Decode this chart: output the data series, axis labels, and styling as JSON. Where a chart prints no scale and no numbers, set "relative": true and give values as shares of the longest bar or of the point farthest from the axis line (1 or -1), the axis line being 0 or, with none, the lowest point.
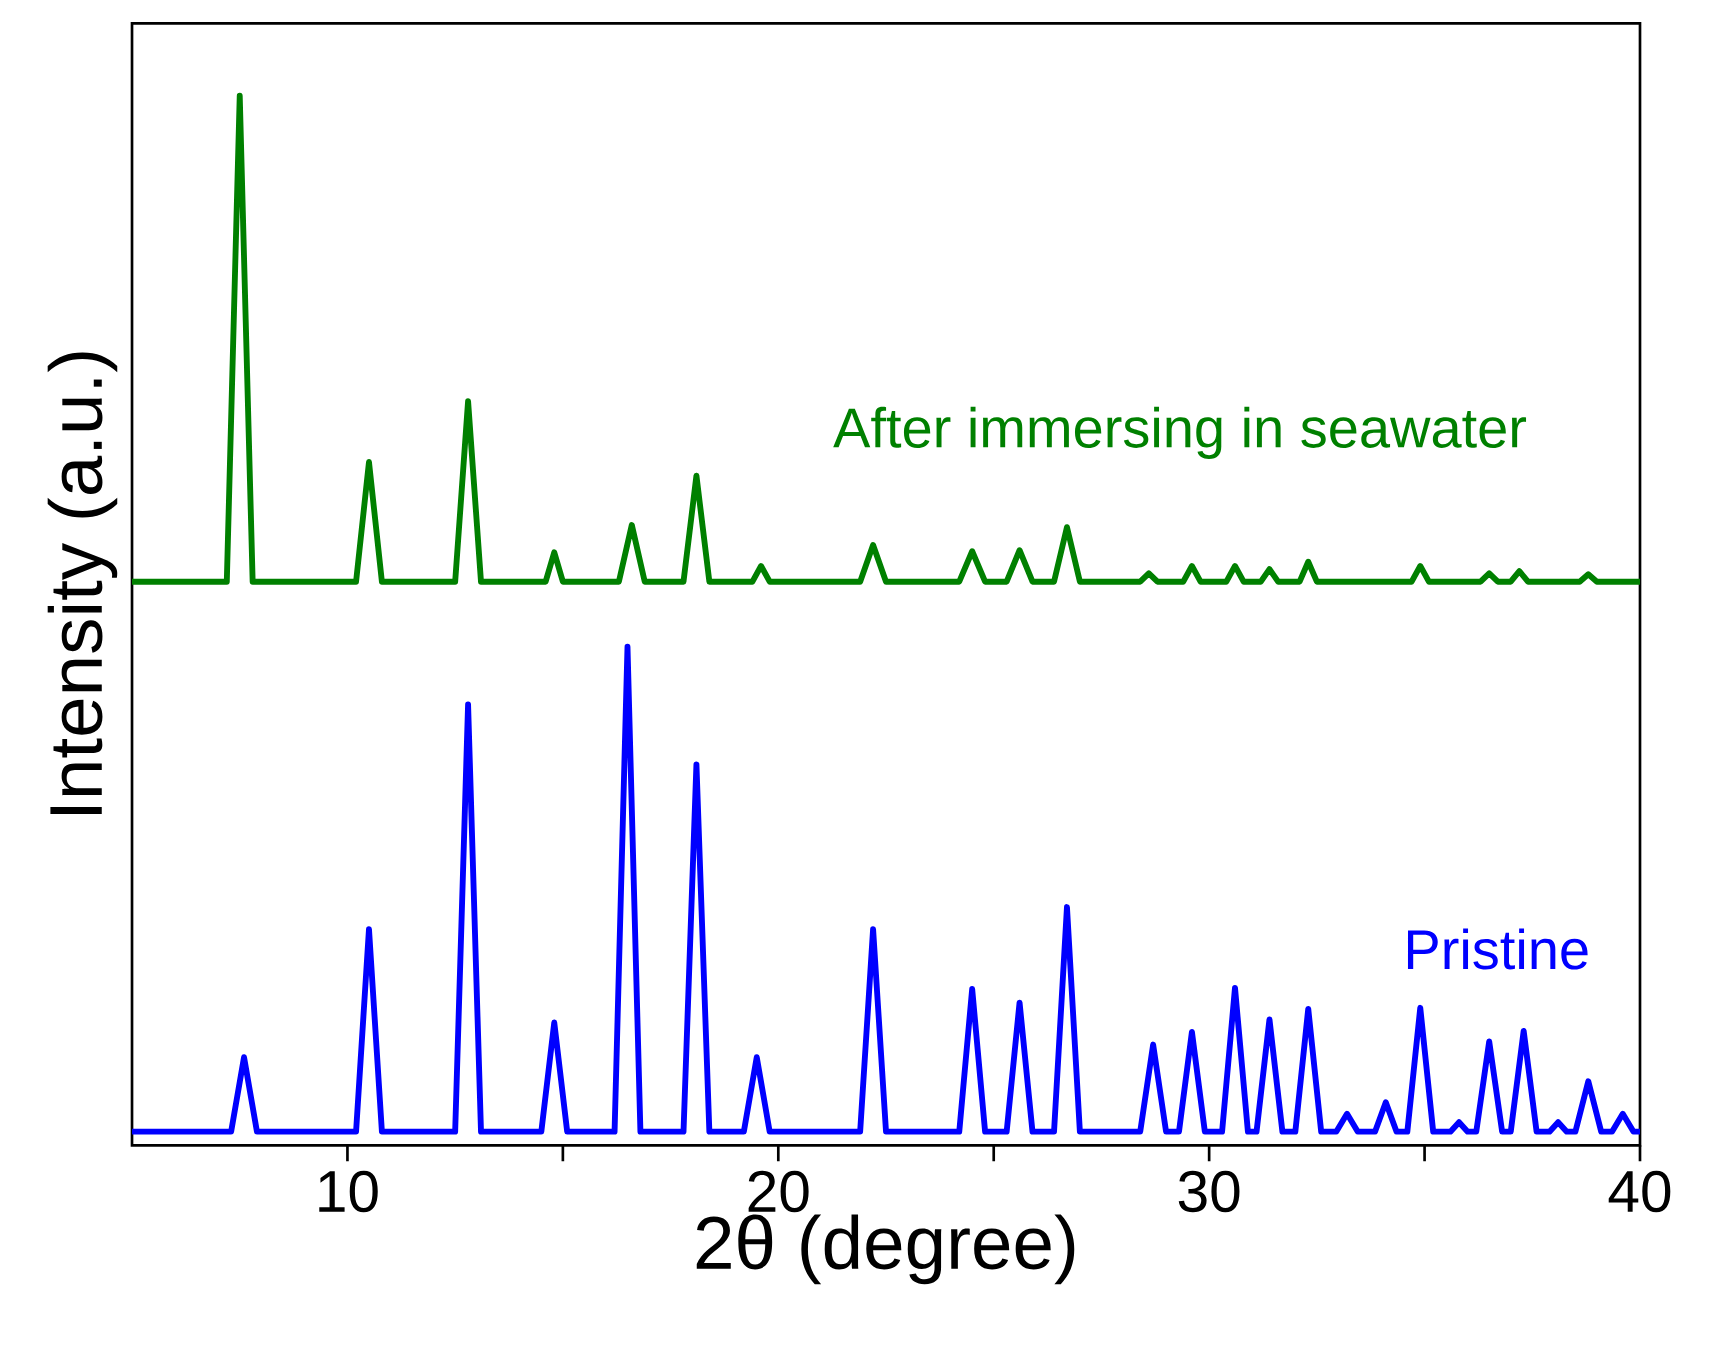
{
  "chart_data": {
    "type": "line",
    "relative": true,
    "xlabel": "2θ (degree)",
    "ylabel": "Intensity (a.u.)",
    "xlim": [
      5,
      40
    ],
    "xticks": [
      10,
      {
        "value": 15,
        "label": null
      },
      20,
      {
        "value": 25,
        "label": null
      },
      30,
      {
        "value": 35,
        "label": null
      },
      40
    ],
    "legend": false,
    "marker": "none",
    "line_style": "solid",
    "series": [
      {
        "name": "After immersing in seawater",
        "color": "#008000",
        "x": [
          5,
          7.2,
          7.5,
          7.8,
          10.2,
          10.5,
          10.8,
          12.5,
          12.8,
          13.1,
          14.6,
          14.8,
          15.0,
          16.3,
          16.6,
          16.9,
          17.8,
          18.1,
          18.4,
          19.4,
          19.6,
          19.8,
          21.9,
          22.2,
          22.5,
          24.2,
          24.5,
          24.8,
          25.3,
          25.6,
          25.9,
          26.4,
          26.7,
          27.0,
          28.4,
          28.6,
          28.8,
          29.4,
          29.6,
          29.8,
          30.4,
          30.6,
          30.8,
          31.2,
          31.4,
          31.6,
          32.1,
          32.3,
          32.5,
          34.7,
          34.9,
          35.1,
          36.3,
          36.5,
          36.7,
          37.0,
          37.2,
          37.4,
          38.6,
          38.8,
          39.0,
          40
        ],
        "values": [
          0.537,
          0.537,
          1.0,
          0.537,
          0.537,
          0.651,
          0.537,
          0.537,
          0.709,
          0.537,
          0.537,
          0.565,
          0.537,
          0.537,
          0.591,
          0.537,
          0.537,
          0.638,
          0.537,
          0.537,
          0.552,
          0.537,
          0.537,
          0.572,
          0.537,
          0.537,
          0.566,
          0.537,
          0.537,
          0.567,
          0.537,
          0.537,
          0.589,
          0.537,
          0.537,
          0.545,
          0.537,
          0.537,
          0.552,
          0.537,
          0.537,
          0.552,
          0.537,
          0.537,
          0.549,
          0.537,
          0.537,
          0.556,
          0.537,
          0.537,
          0.552,
          0.537,
          0.537,
          0.545,
          0.537,
          0.537,
          0.547,
          0.537,
          0.537,
          0.544,
          0.537,
          0.537
        ]
      },
      {
        "name": "Pristine",
        "color": "#0000ff",
        "x": [
          5,
          7.3,
          7.6,
          7.9,
          10.2,
          10.5,
          10.8,
          12.5,
          12.8,
          13.1,
          14.5,
          14.8,
          15.1,
          16.2,
          16.5,
          16.8,
          17.8,
          18.1,
          18.4,
          19.2,
          19.5,
          19.8,
          21.9,
          22.2,
          22.5,
          24.2,
          24.5,
          24.8,
          25.3,
          25.6,
          25.9,
          26.4,
          26.7,
          27.0,
          28.4,
          28.7,
          29.0,
          29.3,
          29.6,
          29.9,
          30.3,
          30.6,
          30.9,
          31.1,
          31.4,
          31.7,
          32.0,
          32.3,
          32.6,
          32.95,
          33.2,
          33.45,
          33.85,
          34.1,
          34.35,
          34.6,
          34.9,
          35.2,
          35.6,
          35.8,
          36.0,
          36.2,
          36.5,
          36.8,
          37.0,
          37.3,
          37.6,
          37.9,
          38.1,
          38.3,
          38.5,
          38.8,
          39.1,
          39.35,
          39.6,
          39.85,
          40
        ],
        "values": [
          0.013,
          0.013,
          0.084,
          0.013,
          0.013,
          0.206,
          0.013,
          0.013,
          0.42,
          0.013,
          0.013,
          0.117,
          0.013,
          0.013,
          0.475,
          0.013,
          0.013,
          0.363,
          0.013,
          0.013,
          0.084,
          0.013,
          0.013,
          0.206,
          0.013,
          0.013,
          0.149,
          0.013,
          0.013,
          0.136,
          0.013,
          0.013,
          0.227,
          0.013,
          0.013,
          0.096,
          0.013,
          0.013,
          0.108,
          0.013,
          0.013,
          0.15,
          0.013,
          0.013,
          0.12,
          0.013,
          0.013,
          0.13,
          0.013,
          0.013,
          0.03,
          0.013,
          0.013,
          0.041,
          0.013,
          0.013,
          0.131,
          0.013,
          0.013,
          0.022,
          0.013,
          0.013,
          0.099,
          0.013,
          0.013,
          0.109,
          0.013,
          0.013,
          0.022,
          0.013,
          0.013,
          0.061,
          0.013,
          0.013,
          0.03,
          0.013,
          0.013
        ]
      }
    ]
  }
}
